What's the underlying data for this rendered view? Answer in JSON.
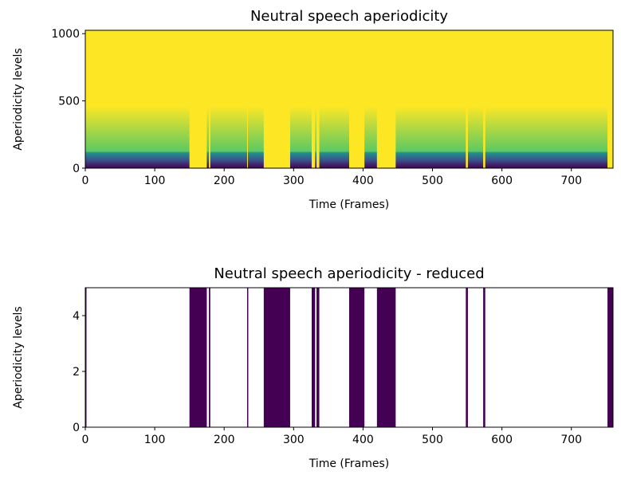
{
  "chart_data": [
    {
      "type": "heatmap",
      "title": "Neutral speech aperiodicity",
      "xlabel": "Time (Frames)",
      "ylabel": "Aperiodicity levels",
      "xlim": [
        0,
        760
      ],
      "ylim": [
        0,
        1025
      ],
      "xticks": [
        0,
        100,
        200,
        300,
        400,
        500,
        600,
        700
      ],
      "yticks": [
        0,
        500,
        1000
      ],
      "low_band_top": 120,
      "colormap": [
        "#440154",
        "#3b528b",
        "#21918c",
        "#5ec962",
        "#fde725"
      ],
      "unvoiced_intervals": [
        [
          150,
          175
        ],
        [
          178,
          180
        ],
        [
          233,
          234
        ],
        [
          257,
          295
        ],
        [
          326,
          331
        ],
        [
          333,
          337
        ],
        [
          380,
          402
        ],
        [
          420,
          447
        ],
        [
          548,
          551
        ],
        [
          573,
          576
        ],
        [
          752,
          760
        ]
      ]
    },
    {
      "type": "intervals",
      "title": "Neutral speech aperiodicity - reduced",
      "xlabel": "Time (Frames)",
      "ylabel": "Aperiodicity levels",
      "xlim": [
        0,
        760
      ],
      "ylim": [
        0,
        5
      ],
      "xticks": [
        0,
        100,
        200,
        300,
        400,
        500,
        600,
        700
      ],
      "yticks": [
        0,
        2,
        4
      ],
      "color": "#440154",
      "intervals": [
        [
          0,
          1
        ],
        [
          150,
          175
        ],
        [
          178,
          180
        ],
        [
          233,
          234
        ],
        [
          257,
          295
        ],
        [
          326,
          331
        ],
        [
          333,
          337
        ],
        [
          380,
          402
        ],
        [
          420,
          447
        ],
        [
          548,
          551
        ],
        [
          573,
          576
        ],
        [
          752,
          760
        ]
      ]
    }
  ]
}
